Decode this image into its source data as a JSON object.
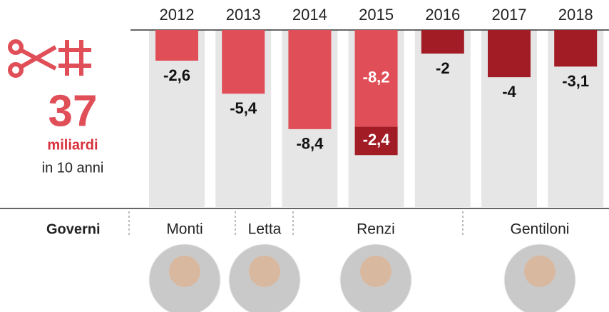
{
  "chart_data": {
    "type": "bar",
    "categories": [
      "2012",
      "2013",
      "2014",
      "2015",
      "2016",
      "2017",
      "2018"
    ],
    "series": [
      {
        "color": "#e04f58",
        "values": [
          -2.6,
          -5.4,
          -8.4,
          -8.2,
          null,
          null,
          null
        ],
        "value_labels": [
          "-2,6",
          "-5,4",
          "-8,4",
          "-8,2",
          null,
          null,
          null
        ]
      },
      {
        "color": "#a21c25",
        "values": [
          null,
          null,
          null,
          -2.4,
          -2,
          -4,
          -3.1
        ],
        "value_labels": [
          null,
          null,
          null,
          "-2,4",
          "-2",
          "-4",
          "-3,1"
        ]
      }
    ],
    "ylim": [
      0,
      -15
    ]
  },
  "summary": {
    "total": "37",
    "unit": "miliardi",
    "period": "in 10 anni"
  },
  "governments": {
    "label": "Governi",
    "names": [
      "Monti",
      "Letta",
      "Renzi",
      "Gentiloni"
    ]
  }
}
